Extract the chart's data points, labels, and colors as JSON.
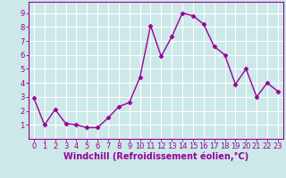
{
  "x": [
    0,
    1,
    2,
    3,
    4,
    5,
    6,
    7,
    8,
    9,
    10,
    11,
    12,
    13,
    14,
    15,
    16,
    17,
    18,
    19,
    20,
    21,
    22,
    23
  ],
  "y": [
    2.9,
    1.0,
    2.1,
    1.1,
    1.0,
    0.8,
    0.8,
    1.5,
    2.3,
    2.6,
    4.4,
    8.1,
    5.9,
    7.3,
    9.0,
    8.8,
    8.2,
    6.6,
    6.0,
    3.9,
    5.0,
    3.0,
    4.0,
    3.4
  ],
  "line_color": "#990099",
  "marker": "D",
  "markersize": 2.5,
  "linewidth": 1.0,
  "bg_color": "#cce8e8",
  "grid_color": "#ffffff",
  "xlabel": "Windchill (Refroidissement éolien,°C)",
  "xlabel_color": "#990099",
  "xlabel_fontsize": 7,
  "tick_color": "#990099",
  "tick_fontsize": 6,
  "xlim": [
    -0.5,
    23.5
  ],
  "ylim": [
    0,
    9.8
  ],
  "yticks": [
    1,
    2,
    3,
    4,
    5,
    6,
    7,
    8,
    9
  ],
  "xticks": [
    0,
    1,
    2,
    3,
    4,
    5,
    6,
    7,
    8,
    9,
    10,
    11,
    12,
    13,
    14,
    15,
    16,
    17,
    18,
    19,
    20,
    21,
    22,
    23
  ],
  "spine_color": "#990099"
}
